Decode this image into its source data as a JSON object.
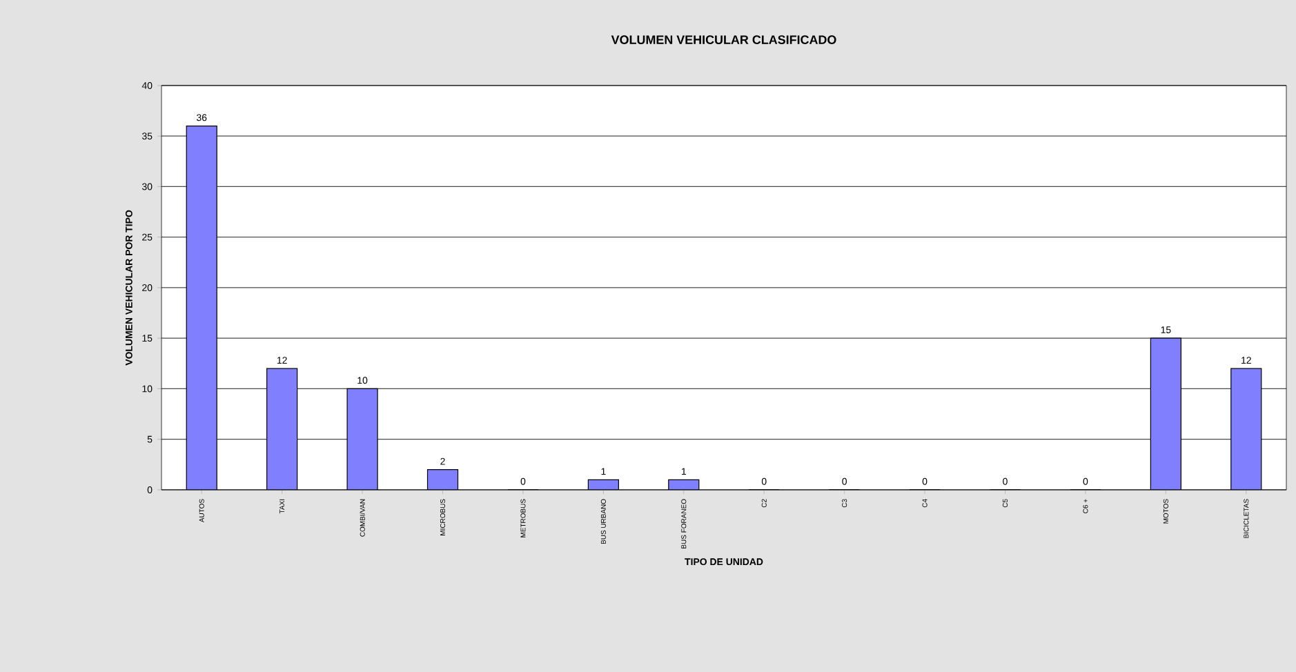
{
  "chart_data": {
    "type": "bar",
    "title": "VOLUMEN VEHICULAR CLASIFICADO",
    "xlabel": "TIPO DE UNIDAD",
    "ylabel": "VOLUMEN VEHICULAR POR TIPO",
    "categories": [
      "AUTOS",
      "TAXI",
      "COMBI/VAN",
      "MICROBUS",
      "METROBUS",
      "BUS URBANO",
      "BUS FORANEO",
      "C2",
      "C3",
      "C4",
      "C5",
      "C6 +",
      "MOTOS",
      "BICICLETAS"
    ],
    "values": [
      36,
      12,
      10,
      2,
      0,
      1,
      1,
      0,
      0,
      0,
      0,
      0,
      15,
      12
    ],
    "color": "#8080ff",
    "ylim": [
      0,
      40
    ],
    "yticks": [
      0,
      5,
      10,
      15,
      20,
      25,
      30,
      35,
      40
    ],
    "grid": "y",
    "data_labels": true
  }
}
